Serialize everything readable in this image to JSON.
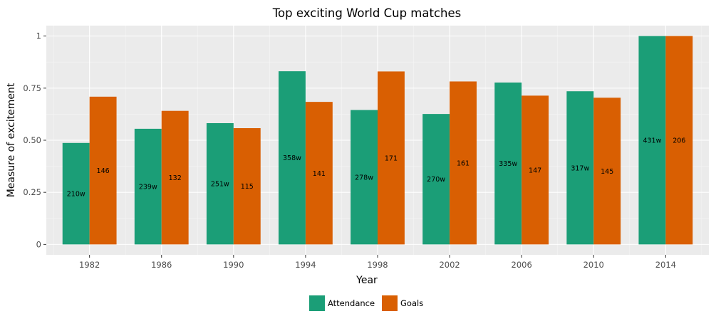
{
  "chart_data": {
    "type": "bar",
    "title": "Top exciting World Cup matches",
    "xlabel": "Year",
    "ylabel": "Measure of excitement",
    "categories": [
      "1982",
      "1986",
      "1990",
      "1994",
      "1998",
      "2002",
      "2006",
      "2010",
      "2014"
    ],
    "series": [
      {
        "name": "Attendance",
        "color": "#1b9e77",
        "values": [
          0.487,
          0.555,
          0.582,
          0.831,
          0.645,
          0.626,
          0.777,
          0.735,
          1.0
        ],
        "labels": [
          "210w",
          "239w",
          "251w",
          "358w",
          "278w",
          "270w",
          "335w",
          "317w",
          "431w"
        ]
      },
      {
        "name": "Goals",
        "color": "#d95f02",
        "values": [
          0.709,
          0.641,
          0.558,
          0.684,
          0.83,
          0.782,
          0.714,
          0.704,
          1.0
        ],
        "labels": [
          "146",
          "132",
          "115",
          "141",
          "171",
          "161",
          "147",
          "145",
          "206"
        ]
      }
    ],
    "ylim": [
      -0.05,
      1.05
    ],
    "yticks": [
      0,
      0.25,
      0.5,
      0.75,
      1
    ],
    "ytick_labels": [
      "0",
      "0.25",
      "0.50",
      "0.75",
      "1"
    ],
    "grid": true,
    "legend": "bottom",
    "panel_background": "#ebebeb"
  }
}
